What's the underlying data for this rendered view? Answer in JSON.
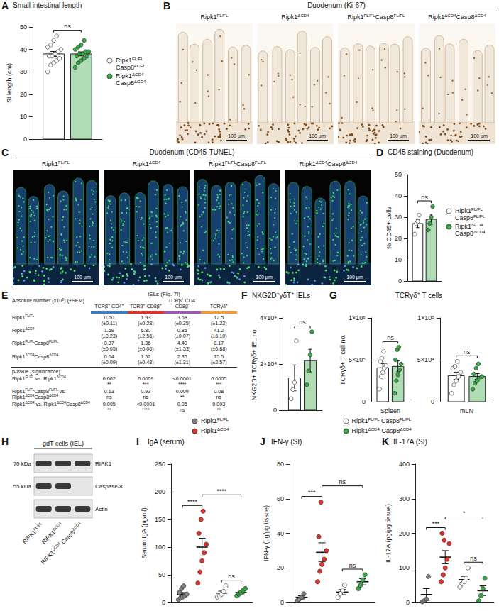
{
  "chart_data": [
    {
      "panel": "A",
      "type": "bar",
      "title": "Small intestinal length",
      "y_label": "SI length (cm)",
      "categories": [
        null
      ],
      "ylim": [
        0,
        50
      ],
      "yticks": [
        0,
        10,
        20,
        30,
        40,
        50
      ],
      "legend": "right",
      "series": [
        {
          "name": "Ripk1FL/FL Casp8FL/FL",
          "color": "#ffffff",
          "values": [
            38
          ],
          "errors": [
            1.1
          ],
          "points": [
            [
              30,
              33,
              34,
              35,
              36,
              37,
              37,
              38,
              39,
              40,
              41,
              42,
              44,
              46
            ]
          ]
        },
        {
          "name": "Ripk1ΔCD4 Casp8ΔCD4",
          "color": "#3aa845",
          "values": [
            38
          ],
          "errors": [
            0.9
          ],
          "points": [
            [
              32,
              34,
              35,
              36,
              37,
              37,
              38,
              38,
              39,
              39,
              40,
              41,
              42,
              44
            ]
          ]
        }
      ],
      "annotations": [
        {
          "text": "ns",
          "between": [
            "Ripk1FL/FL Casp8FL/FL",
            "Ripk1ΔCD4 Casp8ΔCD4"
          ]
        }
      ]
    },
    {
      "panel": "D",
      "type": "bar",
      "title": "CD45 staining (Duodenum)",
      "y_label": "% CD45+ cells",
      "categories": [
        null
      ],
      "ylim": [
        0,
        50
      ],
      "yticks": [
        0,
        10,
        20,
        30,
        40,
        50
      ],
      "legend": "right",
      "series": [
        {
          "name": "Ripk1FL/FL Casp8FL/FL",
          "color": "#ffffff",
          "values": [
            27
          ],
          "errors": [
            1.9
          ],
          "points": [
            [
              22,
              27,
              28,
              31
            ]
          ]
        },
        {
          "name": "Ripk1ΔCD4 Casp8ΔCD4",
          "color": "#3aa845",
          "values": [
            29
          ],
          "errors": [
            2.4
          ],
          "points": [
            [
              24,
              27,
              30,
              35
            ]
          ]
        }
      ],
      "annotations": [
        {
          "text": "ns",
          "between": [
            "Ripk1FL/FL Casp8FL/FL",
            "Ripk1ΔCD4 Casp8ΔCD4"
          ]
        }
      ]
    },
    {
      "panel": "F",
      "type": "bar",
      "title": "NKG2D+γδT+ IELs",
      "y_label": "NKG2D+ TCRγδ+ IEL no.",
      "categories": [
        null
      ],
      "ylim": [
        0,
        40000
      ],
      "yticks": [
        0,
        {
          "value": 20000,
          "label": "2×10⁴"
        },
        {
          "value": 40000,
          "label": "4×10⁴"
        }
      ],
      "series": [
        {
          "name": "Ripk1FL/FL Casp8FL/FL",
          "color": "#ffffff",
          "values": [
            14000
          ],
          "errors": [
            5600
          ],
          "points": [
            [
              5000,
              9000,
              12000,
              30000
            ]
          ]
        },
        {
          "name": "Ripk1ΔCD4 Casp8ΔCD4",
          "color": "#3aa845",
          "values": [
            21500
          ],
          "errors": [
            4900
          ],
          "points": [
            [
              11000,
              17000,
              24000,
              34000
            ]
          ]
        }
      ],
      "annotations": [
        {
          "text": "ns",
          "between": [
            "Ripk1FL/FL Casp8FL/FL",
            "Ripk1ΔCD4 Casp8ΔCD4"
          ]
        }
      ]
    },
    {
      "panel": "G",
      "type": "bar",
      "title": "TCRγδ+ T cells",
      "y_label": "TCRγδ+ T cell no.",
      "categories": [
        "Spleen"
      ],
      "ylim": [
        0,
        1000000
      ],
      "yticks": [
        0,
        {
          "value": 500000,
          "label": "5×10⁵"
        },
        {
          "value": 1000000,
          "label": "1×10⁶"
        }
      ],
      "series": [
        {
          "name": "Ripk1FL/FL Casp8FL/FL",
          "color": "#ffffff",
          "values": [
            404000
          ],
          "errors": [
            48000
          ],
          "points": [
            [
              150000,
              300000,
              350000,
              400000,
              430000,
              480000,
              520000,
              600000
            ]
          ]
        },
        {
          "name": "Ripk1ΔCD4 Casp8ΔCD4",
          "color": "#3aa845",
          "values": [
            421000
          ],
          "errors": [
            65000
          ],
          "points": [
            [
              100000,
              250000,
              320000,
              380000,
              450000,
              500000,
              620000,
              650000
            ]
          ]
        }
      ],
      "annotations": [
        {
          "text": "ns",
          "between": [
            "Ripk1FL/FL Casp8FL/FL",
            "Ripk1ΔCD4 Casp8ΔCD4"
          ]
        }
      ]
    },
    {
      "type": "bar",
      "categories": [
        "mLN"
      ],
      "ylim": [
        0,
        100000
      ],
      "yticks": [
        0,
        {
          "value": 50000,
          "label": "5×10⁴"
        },
        {
          "value": 100000,
          "label": "1×10⁵"
        }
      ],
      "series": [
        {
          "name": "Ripk1FL/FL Casp8FL/FL",
          "color": "#ffffff",
          "values": [
            31000
          ],
          "errors": [
            4300
          ],
          "points": [
            [
              10000,
              20000,
              25000,
              30000,
              35000,
              40000,
              42000,
              48000
            ]
          ]
        },
        {
          "name": "Ripk1ΔCD4 Casp8ΔCD4",
          "color": "#3aa845",
          "values": [
            30000
          ],
          "errors": [
            3400
          ],
          "points": [
            [
              15000,
              22000,
              25000,
              28000,
              30000,
              33000,
              40000,
              45000
            ]
          ]
        }
      ],
      "annotations": [
        {
          "text": "ns",
          "between": [
            "Ripk1FL/FL Casp8FL/FL",
            "Ripk1ΔCD4 Casp8ΔCD4"
          ]
        }
      ]
    },
    {
      "panel": "I",
      "type": "scatter",
      "title": "IgA (serum)",
      "y_label": "Serum IgA (μg/ml)",
      "categories": [
        null
      ],
      "ylim": [
        0,
        250
      ],
      "yticks": [
        0,
        50,
        100,
        150,
        200,
        250
      ],
      "legend": "top",
      "series": [
        {
          "name": "Ripk1FL/FL",
          "color": "#7f7f7f",
          "values": [
            15
          ],
          "errors": [
            3
          ],
          "points": [
            [
              5,
              8,
              10,
              12,
              15,
              18,
              25,
              30
            ]
          ]
        },
        {
          "name": "Ripk1ΔCD4",
          "color": "#e0312b",
          "values": [
            100
          ],
          "errors": [
            16
          ],
          "points": [
            [
              35,
              55,
              75,
              90,
              105,
              125,
              150,
              165
            ]
          ]
        },
        {
          "name": "Ripk1FL/FL Casp8FL/FL",
          "color": "#ffffff",
          "values": [
            17
          ],
          "errors": [
            3.5
          ],
          "points": [
            [
              10,
              12,
              15,
              20,
              30
            ]
          ]
        },
        {
          "name": "Ripk1ΔCD4 Casp8ΔCD4",
          "color": "#3aa845",
          "values": [
            18
          ],
          "errors": [
            2.3
          ],
          "points": [
            [
              12,
              15,
              18,
              22,
              25
            ]
          ]
        }
      ],
      "annotations": [
        {
          "text": "ns",
          "between": [
            "Ripk1FL/FL Casp8FL/FL",
            "Ripk1ΔCD4 Casp8ΔCD4"
          ]
        },
        {
          "text": "****",
          "between": [
            "Ripk1FL/FL",
            "Ripk1ΔCD4"
          ]
        },
        {
          "text": "****",
          "between": [
            "Ripk1ΔCD4",
            "Ripk1ΔCD4 Casp8ΔCD4"
          ]
        }
      ]
    },
    {
      "panel": "J",
      "type": "scatter",
      "title": "IFN-γ (SI)",
      "y_label": "IFN-γ (pg/μg tissue)",
      "categories": [
        null
      ],
      "ylim": [
        0,
        80
      ],
      "yticks": [
        0,
        20,
        40,
        60,
        80
      ],
      "series": [
        {
          "name": "Ripk1FL/FL",
          "color": "#7f7f7f",
          "values": [
            3
          ],
          "errors": [
            0.9
          ],
          "points": [
            [
              1,
              2,
              3,
              5
            ]
          ]
        },
        {
          "name": "Ripk1ΔCD4",
          "color": "#e0312b",
          "values": [
            29
          ],
          "errors": [
            5.5
          ],
          "points": [
            [
              12,
              18,
              22,
              25,
              30,
              38,
              58
            ]
          ]
        },
        {
          "name": "Ripk1FL/FL Casp8FL/FL",
          "color": "#ffffff",
          "values": [
            6
          ],
          "errors": [
            1.5
          ],
          "points": [
            [
              3,
              5,
              7,
              10
            ]
          ]
        },
        {
          "name": "Ripk1ΔCD4 Casp8ΔCD4",
          "color": "#3aa845",
          "values": [
            12
          ],
          "errors": [
            1.8
          ],
          "points": [
            [
              8,
              10,
              13,
              16
            ]
          ]
        }
      ],
      "annotations": [
        {
          "text": "ns",
          "between": [
            "Ripk1FL/FL Casp8FL/FL",
            "Ripk1ΔCD4 Casp8ΔCD4"
          ]
        },
        {
          "text": "***",
          "between": [
            "Ripk1FL/FL",
            "Ripk1ΔCD4"
          ]
        },
        {
          "text": "ns",
          "between": [
            "Ripk1ΔCD4",
            "Ripk1ΔCD4 Casp8ΔCD4"
          ]
        }
      ]
    },
    {
      "panel": "K",
      "type": "scatter",
      "title": "IL-17A (SI)",
      "y_label": "IL-17A (pg/μg tissue)",
      "categories": [
        null
      ],
      "ylim": [
        0,
        400
      ],
      "yticks": [
        0,
        100,
        200,
        300,
        400
      ],
      "series": [
        {
          "name": "Ripk1FL/FL",
          "color": "#7f7f7f",
          "values": [
            23
          ],
          "errors": [
            17
          ],
          "points": [
            [
              2,
              5,
              10,
              75
            ]
          ]
        },
        {
          "name": "Ripk1ΔCD4",
          "color": "#e0312b",
          "values": [
            131
          ],
          "errors": [
            19
          ],
          "points": [
            [
              60,
              80,
              100,
              125,
              170,
              200,
              180
            ]
          ]
        },
        {
          "name": "Ripk1FL/FL Casp8FL/FL",
          "color": "#ffffff",
          "values": [
            66
          ],
          "errors": [
            9.5
          ],
          "points": [
            [
              45,
              55,
              60,
              70,
              100
            ]
          ]
        },
        {
          "name": "Ripk1ΔCD4 Casp8ΔCD4",
          "color": "#3aa845",
          "values": [
            34
          ],
          "errors": [
            14
          ],
          "points": [
            [
              5,
              20,
              40,
              70
            ]
          ]
        }
      ],
      "annotations": [
        {
          "text": "ns",
          "between": [
            "Ripk1FL/FL Casp8FL/FL",
            "Ripk1ΔCD4 Casp8ΔCD4"
          ]
        },
        {
          "text": "***",
          "between": [
            "Ripk1FL/FL",
            "Ripk1ΔCD4"
          ]
        },
        {
          "text": "*",
          "between": [
            "Ripk1ΔCD4",
            "Ripk1ΔCD4 Casp8ΔCD4"
          ]
        }
      ]
    }
  ],
  "micrographs": [
    {
      "panel": "B",
      "title": "Duodenum (Ki-67)",
      "labels": [
        "Ripk1FL/FL",
        "Ripk1ΔCD4",
        "Ripk1FL/FLCasp8FL/FL",
        "Ripk1ΔCD4Casp8ΔCD4"
      ],
      "scale_bar": "100 μm"
    },
    {
      "panel": "C",
      "title": "Duodenum (CD45-TUNEL)",
      "labels": [
        "Ripk1FL/FL",
        "Ripk1ΔCD4",
        "Ripk1FL/FLCasp8FL/FL",
        "Ripk1ΔCD4Casp8ΔCD4"
      ],
      "scale_bar": "100 μm"
    }
  ],
  "table": {
    "panel": "E",
    "title": "IELs (Fig. 7I)",
    "corner": "Absolute number (x10⁵) (±SEM)",
    "columns": [
      "TCRβ+ CD4+",
      "TCRβ+ CD8β+",
      "TCRβ+ CD4- CD8β-",
      "TCRγδ+"
    ],
    "column_colors": [
      "#3d7cc9",
      "#e0312b",
      "#9b59b6",
      "#f39a3c"
    ],
    "rows": [
      {
        "label": "Ripk1FL/FL",
        "cells": [
          [
            "0.60",
            "(±0.11)"
          ],
          [
            "1.93",
            "(±0.28)"
          ],
          [
            "3.68",
            "(±0.35)"
          ],
          [
            "12.5",
            "(±1.23)"
          ]
        ]
      },
      {
        "label": "Ripk1ΔCD4",
        "cells": [
          [
            "1.59",
            "(±0.23)"
          ],
          [
            "6.80",
            "(±2.56)"
          ],
          [
            "0.85",
            "(±0.07)"
          ],
          [
            "41.2",
            "(±6.10)"
          ]
        ]
      },
      {
        "label": "Ripk1FL/FLCasp8FL/FL",
        "cells": [
          [
            "0.37",
            "(±0.05)"
          ],
          [
            "1.36",
            "(±0.06)"
          ],
          [
            "4.40",
            "(±1.53)"
          ],
          [
            "8.17",
            "(±0.88)"
          ]
        ]
      },
      {
        "label": "Ripk1ΔCD4Casp8ΔCD4",
        "cells": [
          [
            "0.64",
            "(±0.09)"
          ],
          [
            "1.52",
            "(±0.48)"
          ],
          [
            "2.35",
            "(±1.31)"
          ],
          [
            "15.5",
            "(±2.57)"
          ]
        ]
      }
    ],
    "section": "p-value (significance)",
    "p_rows": [
      {
        "label": "Ripk1FL/FL vs. Ripk1ΔCD4",
        "cells": [
          [
            "0.002",
            "**"
          ],
          [
            "0.0009",
            "***"
          ],
          [
            "<0.0001",
            "****"
          ],
          [
            "0.0005",
            "***"
          ]
        ]
      },
      {
        "label": "Ripk1FL/FLCasp8FL/FL vs. Ripk1ΔCD4Casp8ΔCD4",
        "cells": [
          [
            "0.13",
            "ns"
          ],
          [
            "0.93",
            "ns"
          ],
          [
            "0.009",
            "**"
          ],
          [
            "0.08",
            "ns"
          ]
        ]
      },
      {
        "label": "Ripk1ΔCD4 vs. Ripk1ΔCD4Casp8ΔCD4",
        "cells": [
          [
            "0.005",
            "**"
          ],
          [
            "<0.0001",
            "****"
          ],
          [
            "0.05",
            "ns"
          ],
          [
            "0.003",
            "**"
          ]
        ]
      }
    ]
  },
  "blot": {
    "panel": "H",
    "title": "gdT cells (IEL)",
    "rows": [
      {
        "marker": "70 kDa",
        "protein": "RIPK1",
        "bands": [
          true,
          true,
          true
        ]
      },
      {
        "marker": "55 kDa",
        "protein": "Caspase-8",
        "bands": [
          true,
          true,
          false
        ]
      },
      {
        "protein": "Actin",
        "bands": [
          true,
          true,
          true
        ]
      }
    ],
    "lanes": [
      "RIPK1FL/FL",
      "RIPK1ΔCD4",
      "RIPK1ΔCD4 Casp8ΔCD4"
    ]
  }
}
